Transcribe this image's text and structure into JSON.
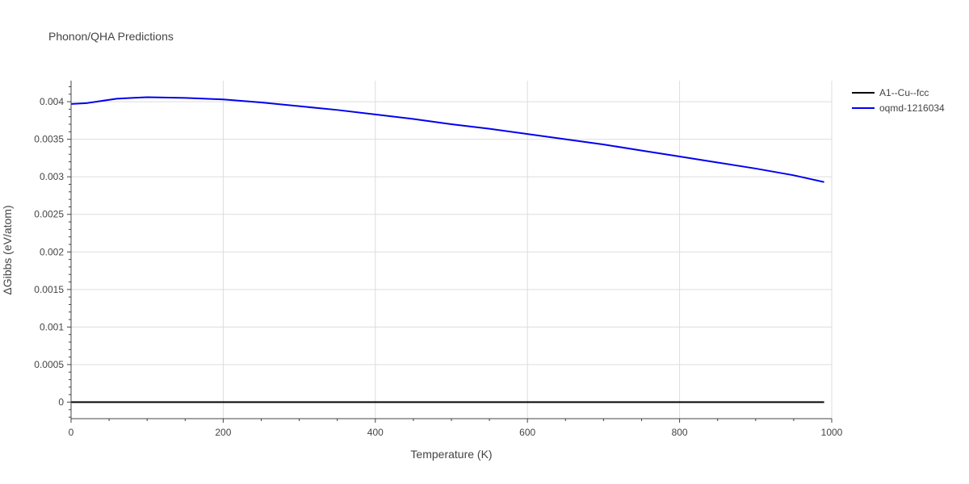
{
  "chart_data": {
    "type": "line",
    "title": "Phonon/QHA Predictions",
    "xlabel": "Temperature (K)",
    "ylabel": "ΔGibbs (eV/atom)",
    "xlim": [
      0,
      1000
    ],
    "ylim": [
      -0.00022,
      0.00428
    ],
    "x_ticks": [
      0,
      200,
      400,
      600,
      800,
      1000
    ],
    "x_tick_labels": [
      "0",
      "200",
      "400",
      "600",
      "800",
      "1000"
    ],
    "y_ticks": [
      0,
      0.0005,
      0.001,
      0.0015,
      0.002,
      0.0025,
      0.003,
      0.0035,
      0.004
    ],
    "y_tick_labels": [
      "0",
      "0.0005",
      "0.001",
      "0.0015",
      "0.002",
      "0.0025",
      "0.003",
      "0.0035",
      "0.004"
    ],
    "grid": true,
    "legend_position": "top-right",
    "series": [
      {
        "name": "A1--Cu--fcc",
        "color": "#000000",
        "x": [
          0,
          100,
          200,
          300,
          400,
          500,
          600,
          700,
          800,
          900,
          990
        ],
        "y": [
          0,
          0,
          0,
          0,
          0,
          0,
          0,
          0,
          0,
          0,
          0
        ]
      },
      {
        "name": "oqmd-1216034",
        "color": "#0000ee",
        "x": [
          0,
          20,
          40,
          60,
          80,
          100,
          150,
          200,
          250,
          300,
          350,
          400,
          450,
          500,
          550,
          600,
          650,
          700,
          750,
          800,
          850,
          900,
          950,
          990
        ],
        "y": [
          0.00397,
          0.00398,
          0.00401,
          0.00404,
          0.00405,
          0.00406,
          0.00405,
          0.00403,
          0.00399,
          0.00394,
          0.00389,
          0.00383,
          0.00377,
          0.0037,
          0.00364,
          0.00357,
          0.0035,
          0.00343,
          0.00335,
          0.00327,
          0.00319,
          0.00311,
          0.00302,
          0.00293
        ]
      }
    ]
  }
}
